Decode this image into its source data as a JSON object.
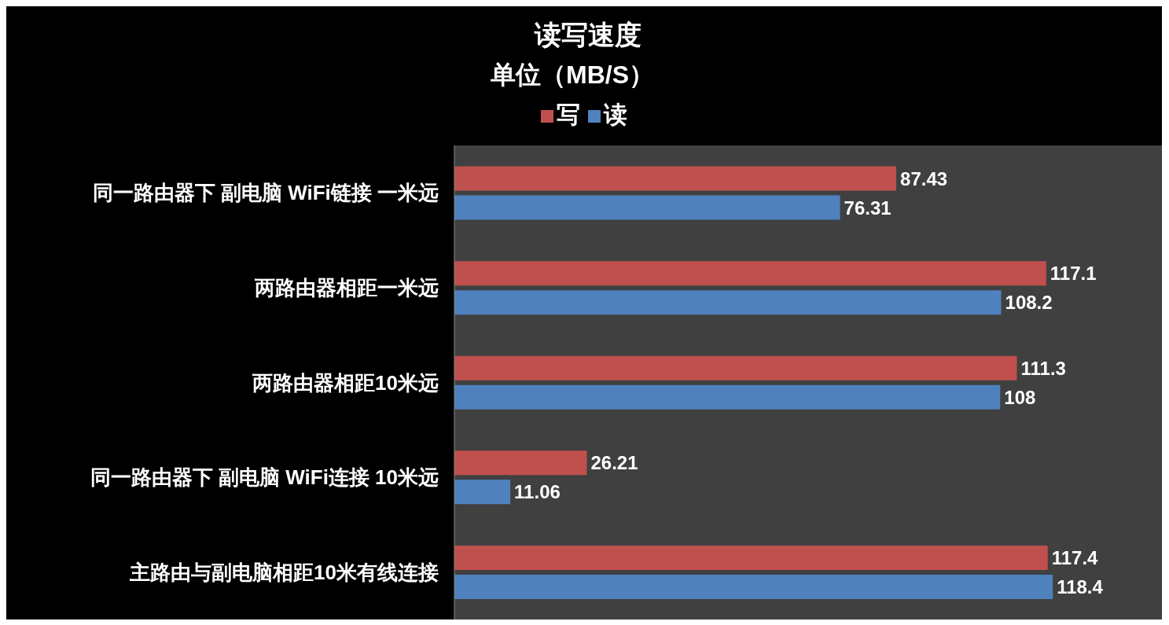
{
  "chart_data": {
    "type": "bar",
    "orientation": "horizontal",
    "title": "读写速度",
    "subtitle": "单位（MB/S）",
    "categories": [
      "同一路由器下 副电脑 WiFi链接 一米远",
      "两路由器相距一米远",
      "两路由器相距10米远",
      "同一路由器下 副电脑 WiFi连接 10米远",
      "主路由与副电脑相距10米有线连接"
    ],
    "series": [
      {
        "name": "写",
        "color": "#c0504d",
        "values": [
          87.43,
          117.1,
          111.3,
          26.21,
          117.4
        ]
      },
      {
        "name": "读",
        "color": "#4f81bd",
        "values": [
          76.31,
          108.2,
          108,
          11.06,
          118.4
        ]
      }
    ],
    "xlim": [
      0,
      140
    ],
    "data_labels": true,
    "legend": "top",
    "tick_labels": "y",
    "grid": false
  }
}
